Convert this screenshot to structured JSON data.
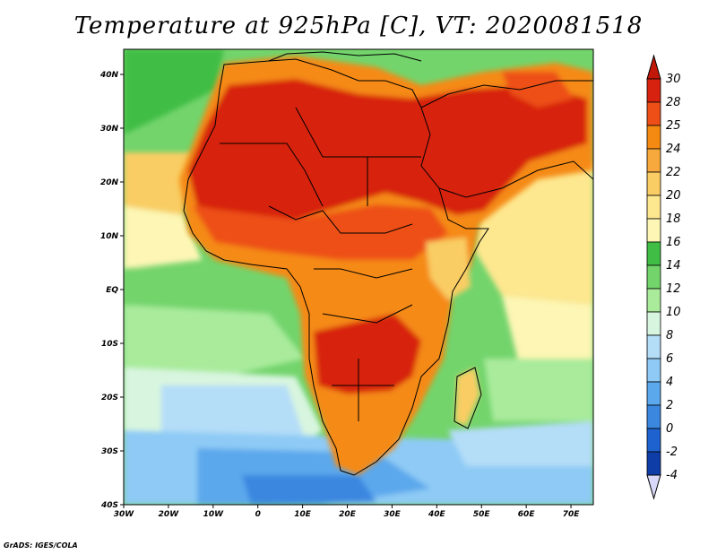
{
  "title": "Temperature at 925hPa [C], VT: 2020081518",
  "credit": "GrADS: IGES/COLA",
  "lon_ticks": [
    "30W",
    "20W",
    "10W",
    "0",
    "10E",
    "20E",
    "30E",
    "40E",
    "50E",
    "60E",
    "70E"
  ],
  "lat_ticks": [
    "40N",
    "30N",
    "20N",
    "10N",
    "EQ",
    "10S",
    "20S",
    "30S",
    "40S"
  ],
  "colorbar": {
    "levels": [
      "30",
      "28",
      "25",
      "24",
      "22",
      "20",
      "18",
      "16",
      "14",
      "12",
      "10",
      "8",
      "6",
      "4",
      "2",
      "0",
      "-2",
      "-4"
    ],
    "colors": [
      "#d7220f",
      "#ed4f17",
      "#f58a12",
      "#f7a93e",
      "#f9cd63",
      "#fde78f",
      "#fdf6b4",
      "#40bd45",
      "#73d46c",
      "#a9eb9b",
      "#d8f5df",
      "#b4ddf8",
      "#8ecaf5",
      "#5ba8ec",
      "#3b87e0",
      "#1e62cf",
      "#0f3da8",
      "#0a1e78"
    ],
    "top_arrow_color": "#c11808",
    "bottom_arrow_color": "#d8d8f8"
  },
  "map_region": {
    "lon_min": -30,
    "lon_max": 75,
    "lat_min": -40,
    "lat_max": 45
  }
}
